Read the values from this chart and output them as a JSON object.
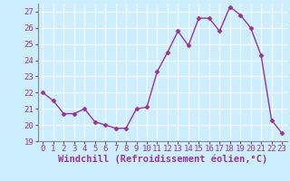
{
  "x": [
    0,
    1,
    2,
    3,
    4,
    5,
    6,
    7,
    8,
    9,
    10,
    11,
    12,
    13,
    14,
    15,
    16,
    17,
    18,
    19,
    20,
    21,
    22,
    23
  ],
  "y": [
    22.0,
    21.5,
    20.7,
    20.7,
    21.0,
    20.2,
    20.0,
    19.8,
    19.8,
    21.0,
    21.1,
    23.3,
    24.5,
    25.8,
    24.9,
    26.6,
    26.6,
    25.8,
    27.3,
    26.8,
    26.0,
    24.3,
    20.3,
    19.5
  ],
  "ylim": [
    19,
    27.5
  ],
  "yticks": [
    19,
    20,
    21,
    22,
    23,
    24,
    25,
    26,
    27
  ],
  "xticks": [
    0,
    1,
    2,
    3,
    4,
    5,
    6,
    7,
    8,
    9,
    10,
    11,
    12,
    13,
    14,
    15,
    16,
    17,
    18,
    19,
    20,
    21,
    22,
    23
  ],
  "xlabel": "Windchill (Refroidissement éolien,°C)",
  "line_color": "#993399",
  "marker": "D",
  "marker_size": 2.5,
  "bg_color": "#cceeff",
  "grid_color": "#aaddcc",
  "tick_label_fontsize": 6.5,
  "xlabel_fontsize": 7.5
}
